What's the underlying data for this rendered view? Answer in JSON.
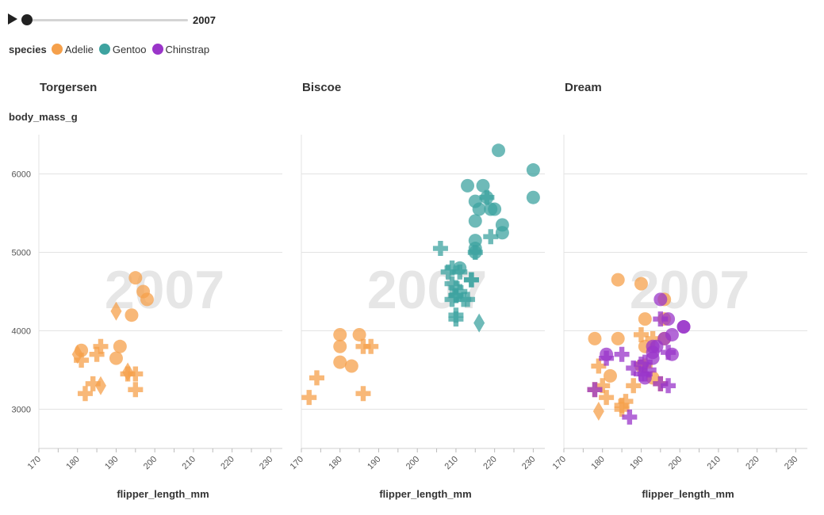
{
  "player": {
    "year": "2007"
  },
  "legend": {
    "title": "species",
    "items": [
      {
        "label": "Adelie",
        "color": "#f5a04b"
      },
      {
        "label": "Gentoo",
        "color": "#3ea3a0"
      },
      {
        "label": "Chinstrap",
        "color": "#9a35c9"
      }
    ]
  },
  "chart_data": {
    "type": "scatter",
    "watermark": "2007",
    "x_label": "flipper_length_mm",
    "y_label": "body_mass_g",
    "xlim": [
      170,
      233
    ],
    "ylim": [
      2500,
      6500
    ],
    "x_ticks": [
      170,
      180,
      190,
      200,
      210,
      220,
      230
    ],
    "y_ticks": [
      3000,
      4000,
      5000,
      6000
    ],
    "grid": true,
    "facets": [
      {
        "title": "Torgersen",
        "points": [
          {
            "species": "Adelie",
            "sex": "male",
            "x": 181,
            "y": 3750
          },
          {
            "species": "Adelie",
            "sex": "female",
            "x": 186,
            "y": 3800
          },
          {
            "species": "Adelie",
            "sex": "female",
            "x": 195,
            "y": 3250
          },
          {
            "species": "Adelie",
            "sex": "female",
            "x": 193,
            "y": 3450
          },
          {
            "species": "Adelie",
            "sex": "male",
            "x": 190,
            "y": 3650
          },
          {
            "species": "Adelie",
            "sex": "female",
            "x": 181,
            "y": 3625
          },
          {
            "species": "Adelie",
            "sex": "male",
            "x": 195,
            "y": 4675
          },
          {
            "species": "Adelie",
            "sex": "unknown",
            "x": 193,
            "y": 3475
          },
          {
            "species": "Adelie",
            "sex": "unknown",
            "x": 190,
            "y": 4250
          },
          {
            "species": "Adelie",
            "sex": "unknown",
            "x": 186,
            "y": 3300
          },
          {
            "species": "Adelie",
            "sex": "unknown",
            "x": 180,
            "y": 3700
          },
          {
            "species": "Adelie",
            "sex": "female",
            "x": 182,
            "y": 3200
          },
          {
            "species": "Adelie",
            "sex": "male",
            "x": 191,
            "y": 3800
          },
          {
            "species": "Adelie",
            "sex": "male",
            "x": 198,
            "y": 4400
          },
          {
            "species": "Adelie",
            "sex": "female",
            "x": 185,
            "y": 3700
          },
          {
            "species": "Adelie",
            "sex": "male",
            "x": 197,
            "y": 4500
          },
          {
            "species": "Adelie",
            "sex": "female",
            "x": 184,
            "y": 3325
          },
          {
            "species": "Adelie",
            "sex": "male",
            "x": 194,
            "y": 4200
          },
          {
            "species": "Adelie",
            "sex": "female",
            "x": 195,
            "y": 3450
          }
        ]
      },
      {
        "title": "Biscoe",
        "points": [
          {
            "species": "Adelie",
            "sex": "female",
            "x": 174,
            "y": 3400
          },
          {
            "species": "Adelie",
            "sex": "female",
            "x": 172,
            "y": 3150
          },
          {
            "species": "Adelie",
            "sex": "female",
            "x": 186,
            "y": 3200
          },
          {
            "species": "Adelie",
            "sex": "female",
            "x": 186,
            "y": 3800
          },
          {
            "species": "Adelie",
            "sex": "female",
            "x": 188,
            "y": 3800
          },
          {
            "species": "Adelie",
            "sex": "male",
            "x": 180,
            "y": 3950
          },
          {
            "species": "Adelie",
            "sex": "male",
            "x": 180,
            "y": 3800
          },
          {
            "species": "Adelie",
            "sex": "male",
            "x": 185,
            "y": 3950
          },
          {
            "species": "Adelie",
            "sex": "male",
            "x": 180,
            "y": 3600
          },
          {
            "species": "Adelie",
            "sex": "male",
            "x": 183,
            "y": 3550
          },
          {
            "species": "Gentoo",
            "sex": "female",
            "x": 211,
            "y": 4500
          },
          {
            "species": "Gentoo",
            "sex": "male",
            "x": 230,
            "y": 5700
          },
          {
            "species": "Gentoo",
            "sex": "female",
            "x": 210,
            "y": 4450
          },
          {
            "species": "Gentoo",
            "sex": "male",
            "x": 218,
            "y": 5700
          },
          {
            "species": "Gentoo",
            "sex": "male",
            "x": 215,
            "y": 5400
          },
          {
            "species": "Gentoo",
            "sex": "female",
            "x": 210,
            "y": 4550
          },
          {
            "species": "Gentoo",
            "sex": "male",
            "x": 211,
            "y": 4800
          },
          {
            "species": "Gentoo",
            "sex": "female",
            "x": 219,
            "y": 5200
          },
          {
            "species": "Gentoo",
            "sex": "female",
            "x": 209,
            "y": 4400
          },
          {
            "species": "Gentoo",
            "sex": "male",
            "x": 215,
            "y": 5150
          },
          {
            "species": "Gentoo",
            "sex": "female",
            "x": 214,
            "y": 4650
          },
          {
            "species": "Gentoo",
            "sex": "male",
            "x": 216,
            "y": 5550
          },
          {
            "species": "Gentoo",
            "sex": "female",
            "x": 214,
            "y": 4650
          },
          {
            "species": "Gentoo",
            "sex": "male",
            "x": 213,
            "y": 5850
          },
          {
            "species": "Gentoo",
            "sex": "female",
            "x": 210,
            "y": 4200
          },
          {
            "species": "Gentoo",
            "sex": "male",
            "x": 217,
            "y": 5850
          },
          {
            "species": "Gentoo",
            "sex": "female",
            "x": 210,
            "y": 4150
          },
          {
            "species": "Gentoo",
            "sex": "male",
            "x": 221,
            "y": 6300
          },
          {
            "species": "Gentoo",
            "sex": "female",
            "x": 209,
            "y": 4800
          },
          {
            "species": "Gentoo",
            "sex": "male",
            "x": 222,
            "y": 5350
          },
          {
            "species": "Gentoo",
            "sex": "female",
            "x": 218,
            "y": 5700
          },
          {
            "species": "Gentoo",
            "sex": "male",
            "x": 215,
            "y": 5000
          },
          {
            "species": "Gentoo",
            "sex": "female",
            "x": 213,
            "y": 4400
          },
          {
            "species": "Gentoo",
            "sex": "male",
            "x": 215,
            "y": 5050
          },
          {
            "species": "Gentoo",
            "sex": "unknown",
            "x": 216,
            "y": 4100
          },
          {
            "species": "Gentoo",
            "sex": "male",
            "x": 215,
            "y": 5650
          },
          {
            "species": "Gentoo",
            "sex": "female",
            "x": 210,
            "y": 4450
          },
          {
            "species": "Gentoo",
            "sex": "male",
            "x": 220,
            "y": 5550
          },
          {
            "species": "Gentoo",
            "sex": "female",
            "x": 211,
            "y": 4750
          },
          {
            "species": "Gentoo",
            "sex": "male",
            "x": 219,
            "y": 5550
          },
          {
            "species": "Gentoo",
            "sex": "female",
            "x": 209,
            "y": 4600
          },
          {
            "species": "Gentoo",
            "sex": "male",
            "x": 230,
            "y": 6050
          },
          {
            "species": "Gentoo",
            "sex": "female",
            "x": 208,
            "y": 4750
          },
          {
            "species": "Gentoo",
            "sex": "male",
            "x": 222,
            "y": 5250
          },
          {
            "species": "Gentoo",
            "sex": "female",
            "x": 215,
            "y": 5000
          },
          {
            "species": "Gentoo",
            "sex": "female",
            "x": 206,
            "y": 5050
          },
          {
            "species": "Gentoo",
            "sex": "female",
            "x": 212,
            "y": 4400
          }
        ]
      },
      {
        "title": "Dream",
        "points": [
          {
            "species": "Adelie",
            "sex": "female",
            "x": 178,
            "y": 3250
          },
          {
            "species": "Adelie",
            "sex": "male",
            "x": 178,
            "y": 3900
          },
          {
            "species": "Adelie",
            "sex": "female",
            "x": 188,
            "y": 3300
          },
          {
            "species": "Adelie",
            "sex": "male",
            "x": 184,
            "y": 3900
          },
          {
            "species": "Adelie",
            "sex": "female",
            "x": 195,
            "y": 3325
          },
          {
            "species": "Adelie",
            "sex": "male",
            "x": 196,
            "y": 4150
          },
          {
            "species": "Adelie",
            "sex": "female",
            "x": 190,
            "y": 3950
          },
          {
            "species": "Adelie",
            "sex": "male",
            "x": 190,
            "y": 3550
          },
          {
            "species": "Adelie",
            "sex": "female",
            "x": 180,
            "y": 3300
          },
          {
            "species": "Adelie",
            "sex": "male",
            "x": 182,
            "y": 3425
          },
          {
            "species": "Adelie",
            "sex": "female",
            "x": 191,
            "y": 3550
          },
          {
            "species": "Adelie",
            "sex": "male",
            "x": 191,
            "y": 3800
          },
          {
            "species": "Adelie",
            "sex": "female",
            "x": 185,
            "y": 3050
          },
          {
            "species": "Adelie",
            "sex": "male",
            "x": 193,
            "y": 3400
          },
          {
            "species": "Adelie",
            "sex": "female",
            "x": 179,
            "y": 3550
          },
          {
            "species": "Adelie",
            "sex": "male",
            "x": 184,
            "y": 4650
          },
          {
            "species": "Adelie",
            "sex": "female",
            "x": 186,
            "y": 3100
          },
          {
            "species": "Adelie",
            "sex": "male",
            "x": 196,
            "y": 3900
          },
          {
            "species": "Adelie",
            "sex": "female",
            "x": 181,
            "y": 3150
          },
          {
            "species": "Adelie",
            "sex": "male",
            "x": 190,
            "y": 4600
          },
          {
            "species": "Adelie",
            "sex": "female",
            "x": 185,
            "y": 3000
          },
          {
            "species": "Adelie",
            "sex": "male",
            "x": 191,
            "y": 4150
          },
          {
            "species": "Adelie",
            "sex": "female",
            "x": 193,
            "y": 3900
          },
          {
            "species": "Adelie",
            "sex": "male",
            "x": 196,
            "y": 4400
          },
          {
            "species": "Adelie",
            "sex": "unknown",
            "x": 179,
            "y": 2975
          },
          {
            "species": "Chinstrap",
            "sex": "female",
            "x": 192,
            "y": 3500
          },
          {
            "species": "Chinstrap",
            "sex": "male",
            "x": 196,
            "y": 3900
          },
          {
            "species": "Chinstrap",
            "sex": "male",
            "x": 193,
            "y": 3650
          },
          {
            "species": "Chinstrap",
            "sex": "female",
            "x": 188,
            "y": 3525
          },
          {
            "species": "Chinstrap",
            "sex": "female",
            "x": 197,
            "y": 3725
          },
          {
            "species": "Chinstrap",
            "sex": "male",
            "x": 198,
            "y": 3950
          },
          {
            "species": "Chinstrap",
            "sex": "male",
            "x": 194,
            "y": 3800
          },
          {
            "species": "Chinstrap",
            "sex": "female",
            "x": 185,
            "y": 3700
          },
          {
            "species": "Chinstrap",
            "sex": "male",
            "x": 201,
            "y": 4050
          },
          {
            "species": "Chinstrap",
            "sex": "female",
            "x": 190,
            "y": 3575
          },
          {
            "species": "Chinstrap",
            "sex": "male",
            "x": 201,
            "y": 4050
          },
          {
            "species": "Chinstrap",
            "sex": "female",
            "x": 197,
            "y": 3300
          },
          {
            "species": "Chinstrap",
            "sex": "male",
            "x": 181,
            "y": 3700
          },
          {
            "species": "Chinstrap",
            "sex": "female",
            "x": 190,
            "y": 3450
          },
          {
            "species": "Chinstrap",
            "sex": "male",
            "x": 195,
            "y": 4400
          },
          {
            "species": "Chinstrap",
            "sex": "female",
            "x": 191,
            "y": 3600
          },
          {
            "species": "Chinstrap",
            "sex": "male",
            "x": 198,
            "y": 3700
          },
          {
            "species": "Chinstrap",
            "sex": "female",
            "x": 187,
            "y": 2900
          },
          {
            "species": "Chinstrap",
            "sex": "male",
            "x": 193,
            "y": 3725
          },
          {
            "species": "Chinstrap",
            "sex": "female",
            "x": 195,
            "y": 4150
          },
          {
            "species": "Chinstrap",
            "sex": "male",
            "x": 197,
            "y": 4150
          },
          {
            "species": "Chinstrap",
            "sex": "female",
            "x": 178,
            "y": 3250
          },
          {
            "species": "Chinstrap",
            "sex": "male",
            "x": 191,
            "y": 3400
          },
          {
            "species": "Chinstrap",
            "sex": "female",
            "x": 181,
            "y": 3650
          },
          {
            "species": "Chinstrap",
            "sex": "female",
            "x": 195,
            "y": 3325
          },
          {
            "species": "Chinstrap",
            "sex": "female",
            "x": 191,
            "y": 3450
          },
          {
            "species": "Chinstrap",
            "sex": "male",
            "x": 193,
            "y": 3800
          }
        ]
      }
    ]
  }
}
